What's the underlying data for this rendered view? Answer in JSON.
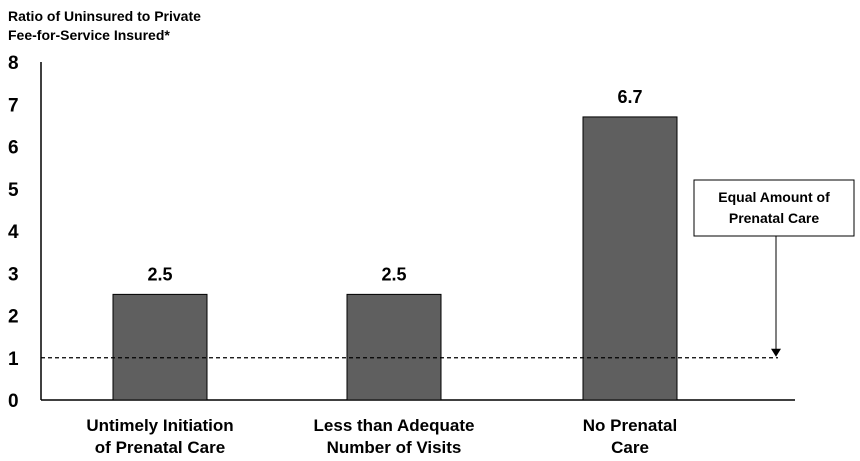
{
  "chart_data": {
    "type": "bar",
    "ylabel_lines": [
      "Ratio of Uninsured to Private",
      "Fee-for-Service Insured*"
    ],
    "xlabel": "",
    "categories": [
      [
        "Untimely Initiation",
        "of Prenatal Care"
      ],
      [
        "Less than Adequate",
        "Number of Visits"
      ],
      [
        "No Prenatal",
        "Care"
      ]
    ],
    "values": [
      2.5,
      2.5,
      6.7
    ],
    "value_labels": [
      "2.5",
      "2.5",
      "6.7"
    ],
    "ylim": [
      0,
      8
    ],
    "yticks": [
      "0",
      "1",
      "2",
      "3",
      "4",
      "5",
      "6",
      "7",
      "8"
    ],
    "bar_color": "#5f5f5f",
    "reference_line": {
      "y": 1,
      "style": "dashed",
      "annotation_lines": [
        "Equal Amount of",
        "Prenatal Care"
      ]
    },
    "grid": false,
    "legend": "none"
  }
}
